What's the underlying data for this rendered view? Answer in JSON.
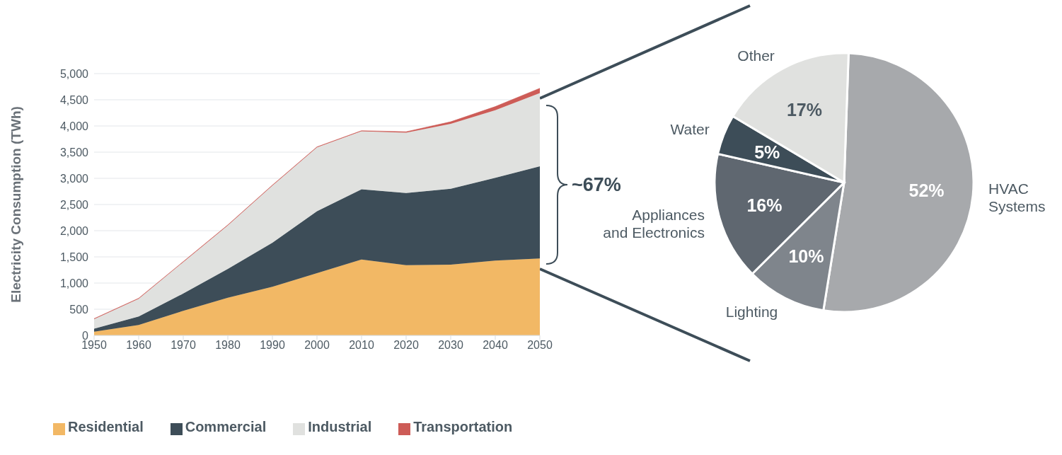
{
  "chart_data": [
    {
      "type": "area",
      "stacked": true,
      "ylabel": "Electricity Consumption (TWh)",
      "x": [
        1950,
        1960,
        1970,
        1980,
        1990,
        2000,
        2010,
        2020,
        2030,
        2040,
        2050
      ],
      "series": [
        {
          "name": "Residential",
          "color": "#f2b865",
          "values": [
            70,
            200,
            470,
            720,
            930,
            1190,
            1450,
            1340,
            1350,
            1430,
            1470
          ]
        },
        {
          "name": "Commercial",
          "color": "#3d4d58",
          "values": [
            60,
            160,
            330,
            550,
            840,
            1180,
            1340,
            1380,
            1450,
            1580,
            1760
          ]
        },
        {
          "name": "Industrial",
          "color": "#e0e1df",
          "values": [
            180,
            340,
            600,
            830,
            1090,
            1220,
            1110,
            1150,
            1240,
            1290,
            1400
          ]
        },
        {
          "name": "Transportation",
          "color": "#cd5c57",
          "values": [
            10,
            10,
            10,
            10,
            10,
            10,
            10,
            20,
            40,
            70,
            90
          ]
        }
      ],
      "xlim": [
        1950,
        2050
      ],
      "xticks": [
        1950,
        1960,
        1970,
        1980,
        1990,
        2000,
        2010,
        2020,
        2030,
        2040,
        2050
      ],
      "ylim": [
        0,
        5000
      ],
      "yticks": [
        0,
        500,
        {
          "value": 1000,
          "label": "1,000"
        },
        {
          "value": 1500,
          "label": "1,500"
        },
        {
          "value": 2000,
          "label": "2,000"
        },
        {
          "value": 2500,
          "label": "2,500"
        },
        {
          "value": 3000,
          "label": "3,000"
        },
        {
          "value": 3500,
          "label": "3,500"
        },
        {
          "value": 4000,
          "label": "4,000"
        },
        {
          "value": 4500,
          "label": "4,500"
        },
        {
          "value": 5000,
          "label": "5,000"
        }
      ],
      "grid": "y",
      "legend": "bottom",
      "annotations": [
        "~67%"
      ]
    },
    {
      "type": "pie",
      "categories": [
        "HVAC\nSystems",
        "Lighting",
        "Appliances\nand Electronics",
        "Water",
        "Other"
      ],
      "values": [
        52,
        10,
        16,
        5,
        17
      ],
      "colors": [
        "#a7a9ac",
        "#7f858c",
        "#5f6770",
        "#3d4d58",
        "#e0e1df"
      ],
      "value_labels": [
        "52%",
        "10%",
        "16%",
        "5%",
        "17%"
      ]
    }
  ]
}
